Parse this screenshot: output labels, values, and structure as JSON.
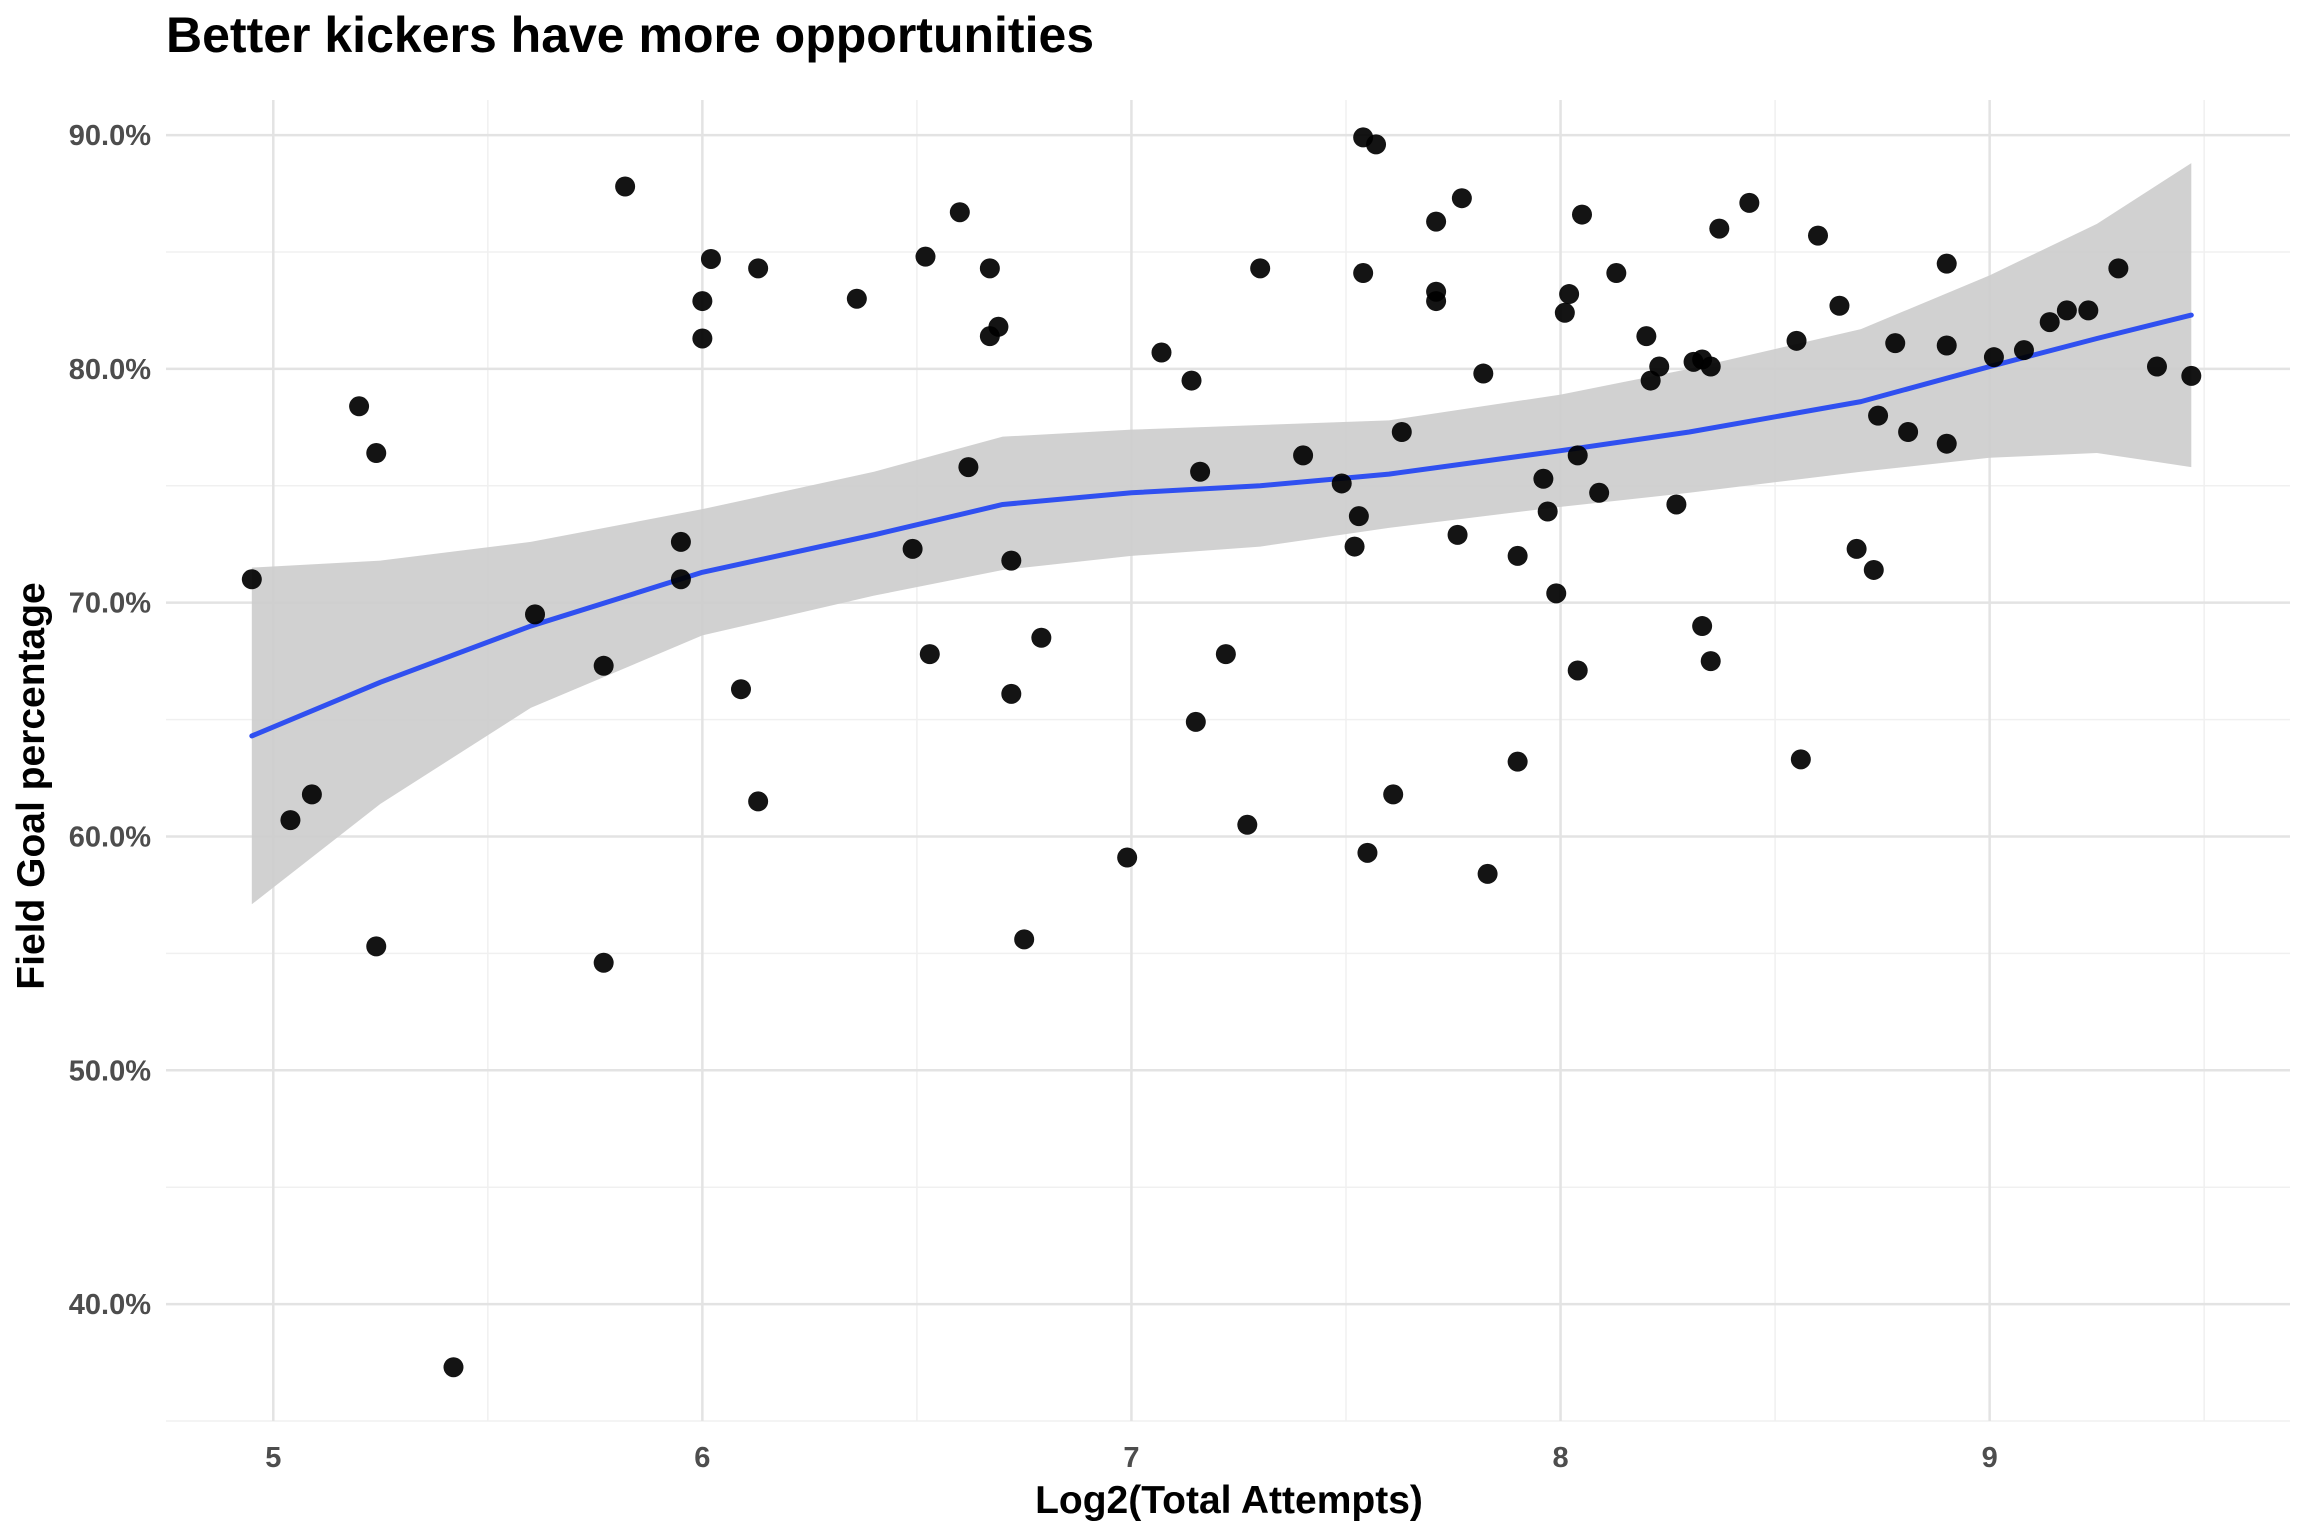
{
  "chart_data": {
    "type": "scatter",
    "title": "Better kickers have more opportunities",
    "xlabel": "Log2(Total Attempts)",
    "ylabel": "Field Goal percentage",
    "xlim": [
      4.75,
      9.7
    ],
    "ylim": [
      0.35,
      0.915
    ],
    "x_ticks": [
      5,
      6,
      7,
      8,
      9
    ],
    "x_tick_labels": [
      "5",
      "6",
      "7",
      "8",
      "9"
    ],
    "y_ticks": [
      0.4,
      0.5,
      0.6,
      0.7,
      0.8,
      0.9
    ],
    "y_tick_labels": [
      "40.0%",
      "50.0%",
      "60.0%",
      "70.0%",
      "80.0%",
      "90.0%"
    ],
    "grid": true,
    "legend": "none",
    "point_color": "#000000",
    "smooth_color": "#3050f0",
    "band_color": "#cccccc",
    "points": [
      [
        4.95,
        0.71
      ],
      [
        5.04,
        0.607
      ],
      [
        5.09,
        0.618
      ],
      [
        5.2,
        0.784
      ],
      [
        5.24,
        0.764
      ],
      [
        5.24,
        0.553
      ],
      [
        5.42,
        0.373
      ],
      [
        5.61,
        0.695
      ],
      [
        5.77,
        0.673
      ],
      [
        5.77,
        0.546
      ],
      [
        5.82,
        0.878
      ],
      [
        5.95,
        0.726
      ],
      [
        5.95,
        0.71
      ],
      [
        6.0,
        0.829
      ],
      [
        6.0,
        0.813
      ],
      [
        6.02,
        0.847
      ],
      [
        6.09,
        0.663
      ],
      [
        6.13,
        0.843
      ],
      [
        6.13,
        0.615
      ],
      [
        6.36,
        0.83
      ],
      [
        6.49,
        0.723
      ],
      [
        6.52,
        0.848
      ],
      [
        6.53,
        0.678
      ],
      [
        6.6,
        0.867
      ],
      [
        6.62,
        0.758
      ],
      [
        6.67,
        0.843
      ],
      [
        6.67,
        0.814
      ],
      [
        6.69,
        0.818
      ],
      [
        6.72,
        0.718
      ],
      [
        6.72,
        0.661
      ],
      [
        6.75,
        0.556
      ],
      [
        6.79,
        0.685
      ],
      [
        6.99,
        0.591
      ],
      [
        7.07,
        0.807
      ],
      [
        7.14,
        0.795
      ],
      [
        7.15,
        0.649
      ],
      [
        7.16,
        0.756
      ],
      [
        7.22,
        0.678
      ],
      [
        7.27,
        0.605
      ],
      [
        7.3,
        0.843
      ],
      [
        7.4,
        0.763
      ],
      [
        7.49,
        0.751
      ],
      [
        7.52,
        0.724
      ],
      [
        7.53,
        0.737
      ],
      [
        7.54,
        0.899
      ],
      [
        7.54,
        0.841
      ],
      [
        7.55,
        0.593
      ],
      [
        7.57,
        0.896
      ],
      [
        7.61,
        0.618
      ],
      [
        7.63,
        0.773
      ],
      [
        7.71,
        0.833
      ],
      [
        7.71,
        0.829
      ],
      [
        7.71,
        0.863
      ],
      [
        7.76,
        0.729
      ],
      [
        7.77,
        0.873
      ],
      [
        7.82,
        0.798
      ],
      [
        7.83,
        0.584
      ],
      [
        7.9,
        0.72
      ],
      [
        7.9,
        0.632
      ],
      [
        7.96,
        0.753
      ],
      [
        7.97,
        0.739
      ],
      [
        7.99,
        0.704
      ],
      [
        8.01,
        0.824
      ],
      [
        8.02,
        0.832
      ],
      [
        8.04,
        0.671
      ],
      [
        8.04,
        0.763
      ],
      [
        8.05,
        0.866
      ],
      [
        8.09,
        0.747
      ],
      [
        8.13,
        0.841
      ],
      [
        8.2,
        0.814
      ],
      [
        8.21,
        0.795
      ],
      [
        8.23,
        0.801
      ],
      [
        8.27,
        0.742
      ],
      [
        8.31,
        0.803
      ],
      [
        8.33,
        0.69
      ],
      [
        8.33,
        0.804
      ],
      [
        8.35,
        0.801
      ],
      [
        8.35,
        0.675
      ],
      [
        8.37,
        0.86
      ],
      [
        8.44,
        0.871
      ],
      [
        8.55,
        0.812
      ],
      [
        8.56,
        0.633
      ],
      [
        8.6,
        0.857
      ],
      [
        8.65,
        0.827
      ],
      [
        8.69,
        0.723
      ],
      [
        8.73,
        0.714
      ],
      [
        8.74,
        0.78
      ],
      [
        8.78,
        0.811
      ],
      [
        8.81,
        0.773
      ],
      [
        8.9,
        0.768
      ],
      [
        8.9,
        0.81
      ],
      [
        8.9,
        0.845
      ],
      [
        9.01,
        0.805
      ],
      [
        9.08,
        0.808
      ],
      [
        9.14,
        0.82
      ],
      [
        9.18,
        0.825
      ],
      [
        9.23,
        0.825
      ],
      [
        9.3,
        0.843
      ],
      [
        9.39,
        0.801
      ],
      [
        9.47,
        0.797
      ]
    ],
    "smooth_line": [
      [
        4.95,
        0.643
      ],
      [
        5.25,
        0.666
      ],
      [
        5.6,
        0.69
      ],
      [
        6.0,
        0.713
      ],
      [
        6.4,
        0.729
      ],
      [
        6.7,
        0.742
      ],
      [
        7.0,
        0.747
      ],
      [
        7.3,
        0.75
      ],
      [
        7.6,
        0.755
      ],
      [
        8.0,
        0.765
      ],
      [
        8.3,
        0.773
      ],
      [
        8.7,
        0.786
      ],
      [
        9.0,
        0.801
      ],
      [
        9.25,
        0.813
      ],
      [
        9.47,
        0.823
      ]
    ],
    "band_upper": [
      [
        4.95,
        0.715
      ],
      [
        5.25,
        0.718
      ],
      [
        5.6,
        0.726
      ],
      [
        6.0,
        0.74
      ],
      [
        6.4,
        0.756
      ],
      [
        6.7,
        0.771
      ],
      [
        7.0,
        0.774
      ],
      [
        7.3,
        0.776
      ],
      [
        7.6,
        0.778
      ],
      [
        8.0,
        0.789
      ],
      [
        8.3,
        0.8
      ],
      [
        8.7,
        0.817
      ],
      [
        9.0,
        0.84
      ],
      [
        9.25,
        0.862
      ],
      [
        9.47,
        0.888
      ]
    ],
    "band_lower": [
      [
        4.95,
        0.571
      ],
      [
        5.25,
        0.614
      ],
      [
        5.6,
        0.655
      ],
      [
        6.0,
        0.686
      ],
      [
        6.4,
        0.703
      ],
      [
        6.7,
        0.714
      ],
      [
        7.0,
        0.72
      ],
      [
        7.3,
        0.724
      ],
      [
        7.6,
        0.732
      ],
      [
        8.0,
        0.741
      ],
      [
        8.3,
        0.747
      ],
      [
        8.7,
        0.756
      ],
      [
        9.0,
        0.762
      ],
      [
        9.25,
        0.764
      ],
      [
        9.47,
        0.758
      ]
    ]
  }
}
